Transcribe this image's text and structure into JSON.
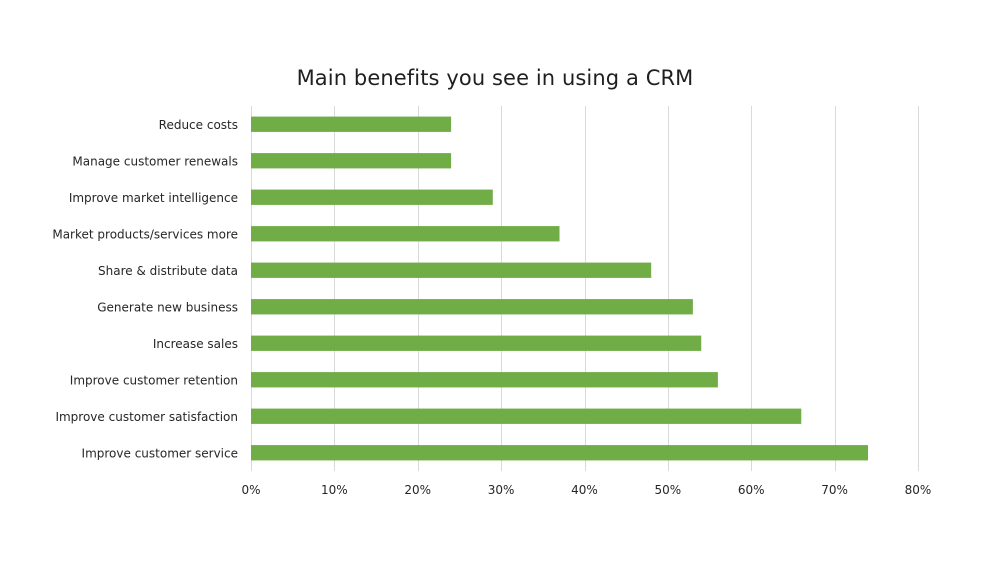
{
  "chart_data": {
    "type": "bar",
    "orientation": "horizontal",
    "title": "Main benefits you see in using a CRM",
    "xlabel": "",
    "ylabel": "",
    "categories": [
      "Reduce costs",
      "Manage customer renewals",
      "Improve market intelligence",
      "Market products/services more",
      "Share & distribute data",
      "Generate new business",
      "Increase sales",
      "Improve customer retention",
      "Improve customer satisfaction",
      "Improve customer service"
    ],
    "values": [
      24,
      24,
      29,
      37,
      48,
      53,
      54,
      56,
      66,
      74
    ],
    "xlim": [
      0,
      80
    ],
    "x_ticks": [
      "0%",
      "10%",
      "20%",
      "30%",
      "40%",
      "50%",
      "60%",
      "70%",
      "80%"
    ],
    "grid": "vertical",
    "legend": "none",
    "colors": {
      "bar": "#70ad47",
      "grid": "#d9d9d9",
      "label": "#262626"
    }
  }
}
